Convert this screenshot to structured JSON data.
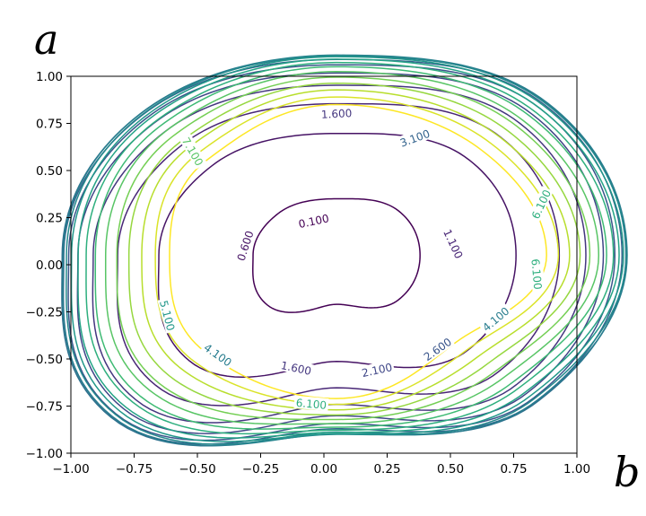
{
  "chart_data": {
    "type": "contour",
    "xlabel": "b",
    "ylabel": "a",
    "xlim": [
      -1.0,
      1.0
    ],
    "ylim": [
      -1.0,
      1.0
    ],
    "x_ticks": [
      "−1.00",
      "−0.75",
      "−0.50",
      "−0.25",
      "0.00",
      "0.25",
      "0.50",
      "0.75",
      "1.00"
    ],
    "x_tick_values": [
      -1.0,
      -0.75,
      -0.5,
      -0.25,
      0.0,
      0.25,
      0.5,
      0.75,
      1.0
    ],
    "y_ticks": [
      "1.00",
      "0.75",
      "0.50",
      "0.25",
      "0.00",
      "−0.25",
      "−0.50",
      "−0.75",
      "−1.00"
    ],
    "y_tick_values": [
      1.0,
      0.75,
      0.5,
      0.25,
      0.0,
      -0.25,
      -0.5,
      -0.75,
      -1.0
    ],
    "grid": false,
    "colormap": "viridis",
    "levels": [
      0.1,
      0.6,
      1.1,
      1.6,
      2.1,
      2.6,
      3.1,
      3.6,
      4.1,
      4.6,
      5.1,
      5.6,
      6.1,
      6.6,
      7.1,
      7.6,
      8.1,
      8.6,
      9.1,
      9.6
    ],
    "minimum": [
      0.05,
      0.05
    ],
    "contour_labels": [
      {
        "text": "0.100",
        "x": -0.04,
        "y": 0.23,
        "angle": -12
      },
      {
        "text": "0.600",
        "x": -0.31,
        "y": 0.1,
        "angle": -72
      },
      {
        "text": "1.100",
        "x": 0.51,
        "y": 0.11,
        "angle": 65
      },
      {
        "text": "1.600",
        "x": -0.11,
        "y": -0.55,
        "angle": 12
      },
      {
        "text": "2.100",
        "x": 0.21,
        "y": -0.56,
        "angle": -12
      },
      {
        "text": "2.600",
        "x": 0.45,
        "y": -0.45,
        "angle": -35
      },
      {
        "text": "4.100",
        "x": 0.68,
        "y": -0.29,
        "angle": -40
      },
      {
        "text": "4.100",
        "x": -0.42,
        "y": -0.48,
        "angle": 35
      },
      {
        "text": "5.100",
        "x": -0.62,
        "y": -0.27,
        "angle": 75
      },
      {
        "text": "3.100",
        "x": 0.36,
        "y": 0.67,
        "angle": -20
      },
      {
        "text": "1.600",
        "x": 0.05,
        "y": 0.8,
        "angle": -3
      },
      {
        "text": "6.100",
        "x": 0.84,
        "y": -0.05,
        "angle": 85
      },
      {
        "text": "6.100",
        "x": 0.86,
        "y": 0.32,
        "angle": -65
      },
      {
        "text": "6.100",
        "x": -0.05,
        "y": -0.74,
        "angle": 5
      },
      {
        "text": "7.100",
        "x": -0.52,
        "y": 0.6,
        "angle": 60
      }
    ]
  }
}
